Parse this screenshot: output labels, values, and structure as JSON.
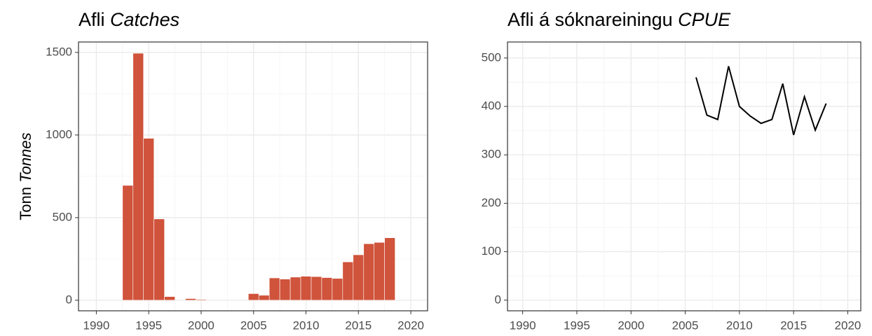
{
  "chart_data": [
    {
      "type": "bar",
      "title": "Afli",
      "title_italic": "Catches",
      "ylabel": "Tonn",
      "ylabel_italic": "Tonnes",
      "x": [
        1993,
        1994,
        1995,
        1996,
        1997,
        1999,
        2000,
        2005,
        2006,
        2007,
        2008,
        2009,
        2010,
        2011,
        2012,
        2013,
        2014,
        2015,
        2016,
        2017,
        2018
      ],
      "values": [
        695,
        1495,
        980,
        492,
        22,
        10,
        5,
        40,
        30,
        135,
        128,
        140,
        145,
        143,
        137,
        132,
        232,
        275,
        342,
        350,
        378
      ],
      "color": "#d0533b",
      "xlim": [
        1988.3,
        2021.6
      ],
      "xticks": [
        1990,
        1995,
        2000,
        2005,
        2010,
        2015,
        2020
      ],
      "ylim": [
        -64,
        1563
      ],
      "yticks": [
        0,
        500,
        1000,
        1500
      ],
      "grid": true
    },
    {
      "type": "line",
      "title": "Afli á sóknareiningu",
      "title_italic": "CPUE",
      "x": [
        2006,
        2007,
        2008,
        2009,
        2010,
        2011,
        2012,
        2013,
        2014,
        2015,
        2016,
        2017,
        2018
      ],
      "values": [
        460,
        382,
        373,
        483,
        400,
        380,
        365,
        373,
        447,
        341,
        420,
        351,
        406
      ],
      "color": "#000000",
      "xlim": [
        1988.6,
        2021.2
      ],
      "xticks": [
        1990,
        1995,
        2000,
        2005,
        2010,
        2015,
        2020
      ],
      "ylim": [
        -22,
        533
      ],
      "yticks": [
        0,
        100,
        200,
        300,
        400,
        500
      ],
      "grid": true
    }
  ]
}
